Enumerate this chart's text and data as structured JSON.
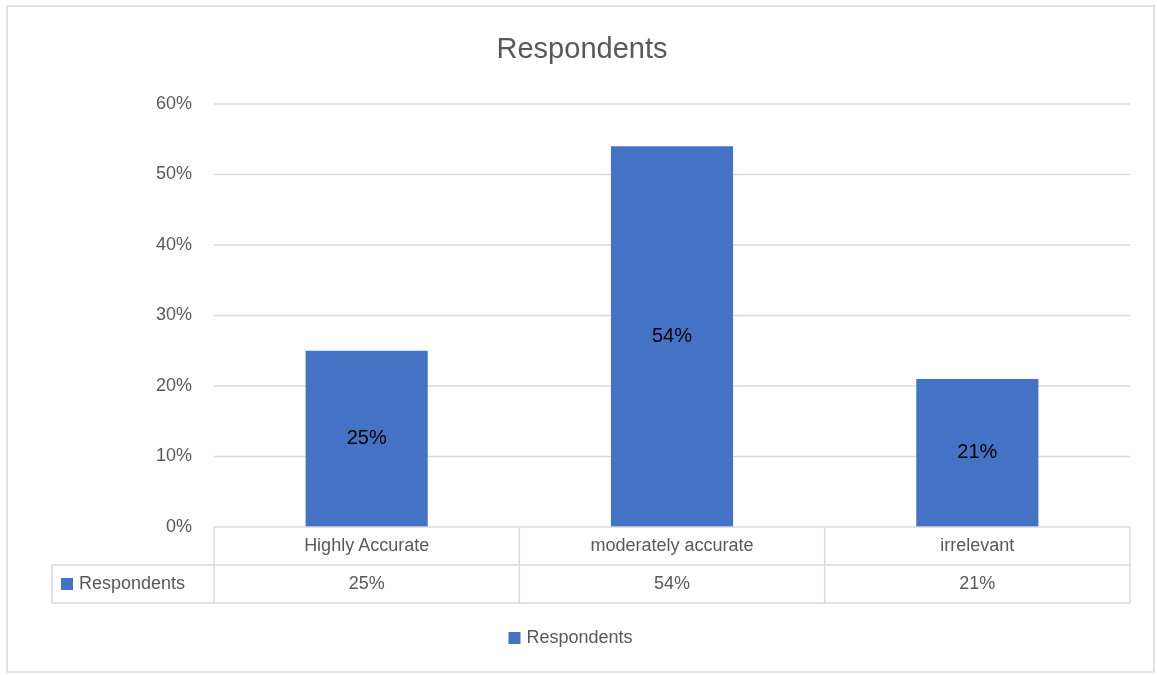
{
  "chart_data": {
    "type": "bar",
    "title": "Respondents",
    "categories": [
      "Highly Accurate",
      "moderately accurate",
      "irrelevant"
    ],
    "series": [
      {
        "name": "Respondents",
        "color": "#4472c4",
        "values": [
          25,
          54,
          21
        ],
        "value_labels": [
          "25%",
          "54%",
          "21%"
        ]
      }
    ],
    "ylim": [
      0,
      60
    ],
    "yticks": [
      {
        "value": 0,
        "label": "0%"
      },
      {
        "value": 10,
        "label": "10%"
      },
      {
        "value": 20,
        "label": "20%"
      },
      {
        "value": 30,
        "label": "30%"
      },
      {
        "value": 40,
        "label": "40%"
      },
      {
        "value": 50,
        "label": "50%"
      },
      {
        "value": 60,
        "label": "60%"
      }
    ],
    "grid": "y",
    "legend": "bottom"
  }
}
